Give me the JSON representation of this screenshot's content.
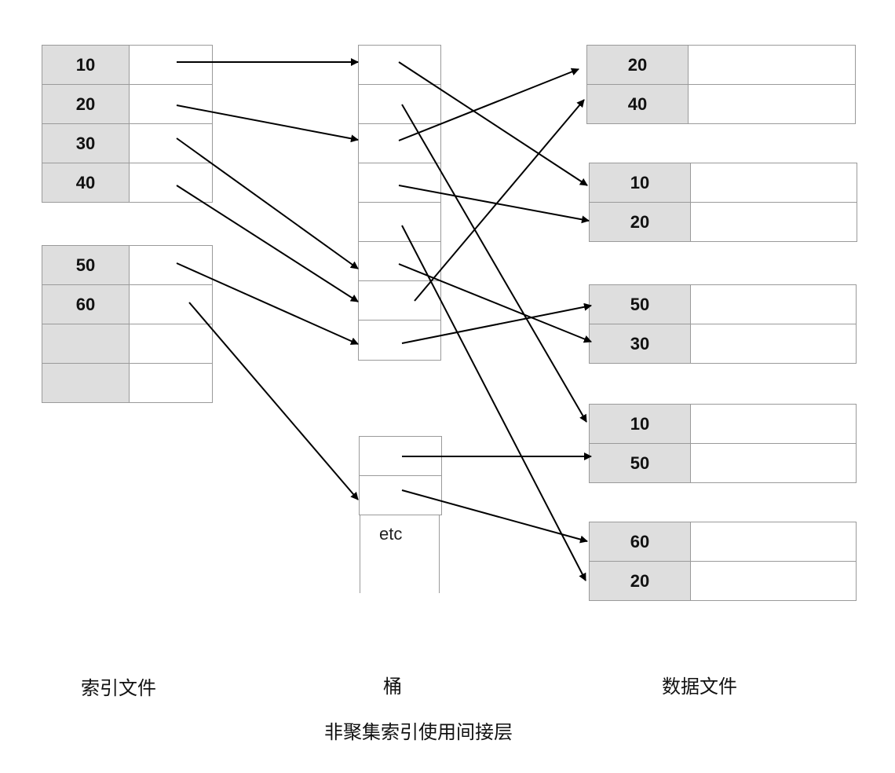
{
  "index_file": {
    "blocks": [
      {
        "keys": [
          "10",
          "20",
          "30",
          "40"
        ]
      },
      {
        "keys": [
          "50",
          "60",
          "",
          ""
        ]
      }
    ]
  },
  "buckets": {
    "etc_label": "etc"
  },
  "data_file": {
    "blocks": [
      {
        "keys": [
          "20",
          "40"
        ]
      },
      {
        "keys": [
          "10",
          "20"
        ]
      },
      {
        "keys": [
          "50",
          "30"
        ]
      },
      {
        "keys": [
          "10",
          "50"
        ]
      },
      {
        "keys": [
          "60",
          "20"
        ]
      }
    ]
  },
  "labels": {
    "index_file": "索引文件",
    "bucket": "桶",
    "data_file": "数据文件",
    "caption": "非聚集索引使用间接层"
  },
  "colors": {
    "key_fill": "#dedede",
    "border": "#9a9a9a",
    "arrow": "#000000"
  }
}
